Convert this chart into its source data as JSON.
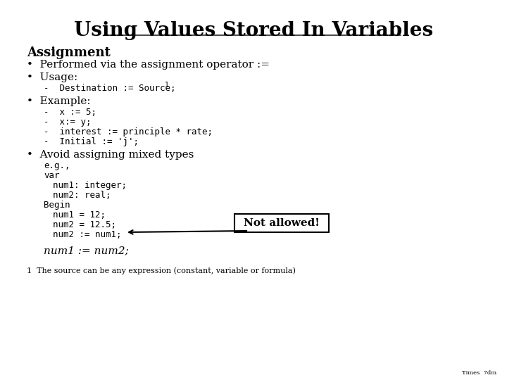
{
  "title": "Using Values Stored In Variables",
  "bg_color": "#ffffff",
  "text_color": "#000000",
  "title_fontsize": 20,
  "body_fontsize": 11,
  "not_allowed_text": "Not allowed!",
  "footnote": "1  The source can be any expression (constant, variable or formula)",
  "footer": "Times  7dm"
}
